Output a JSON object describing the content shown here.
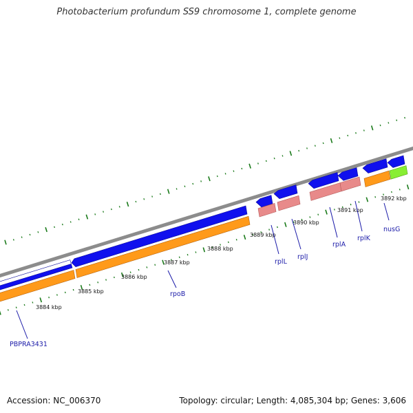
{
  "title": "Photobacterium profundum SS9 chromosome 1, complete genome",
  "footer": {
    "accession": "Accession: NC_006370",
    "summary": "Topology: circular; Length: 4,085,304 bp; Genes: 3,606"
  },
  "colors": {
    "backbone": "#8c8c8c",
    "forward_cds": "#1010ee",
    "gene_orange": "#ff9a1a",
    "pink_rna": "#e88a8a",
    "lime": "#88ee33",
    "tick": "#1a7a1a",
    "label_link": "#1a1aa8"
  },
  "scale_labels": [
    "3884 kbp",
    "3885 kbp",
    "3886 kbp",
    "3887 kbp",
    "3888 kbp",
    "3889 kbp",
    "3890 kbp",
    "3891 kbp",
    "3892 kbp"
  ],
  "gene_labels": [
    "PBPRA3431",
    "rpoB",
    "rplL",
    "rplJ",
    "rplA",
    "rplK",
    "nusG"
  ]
}
